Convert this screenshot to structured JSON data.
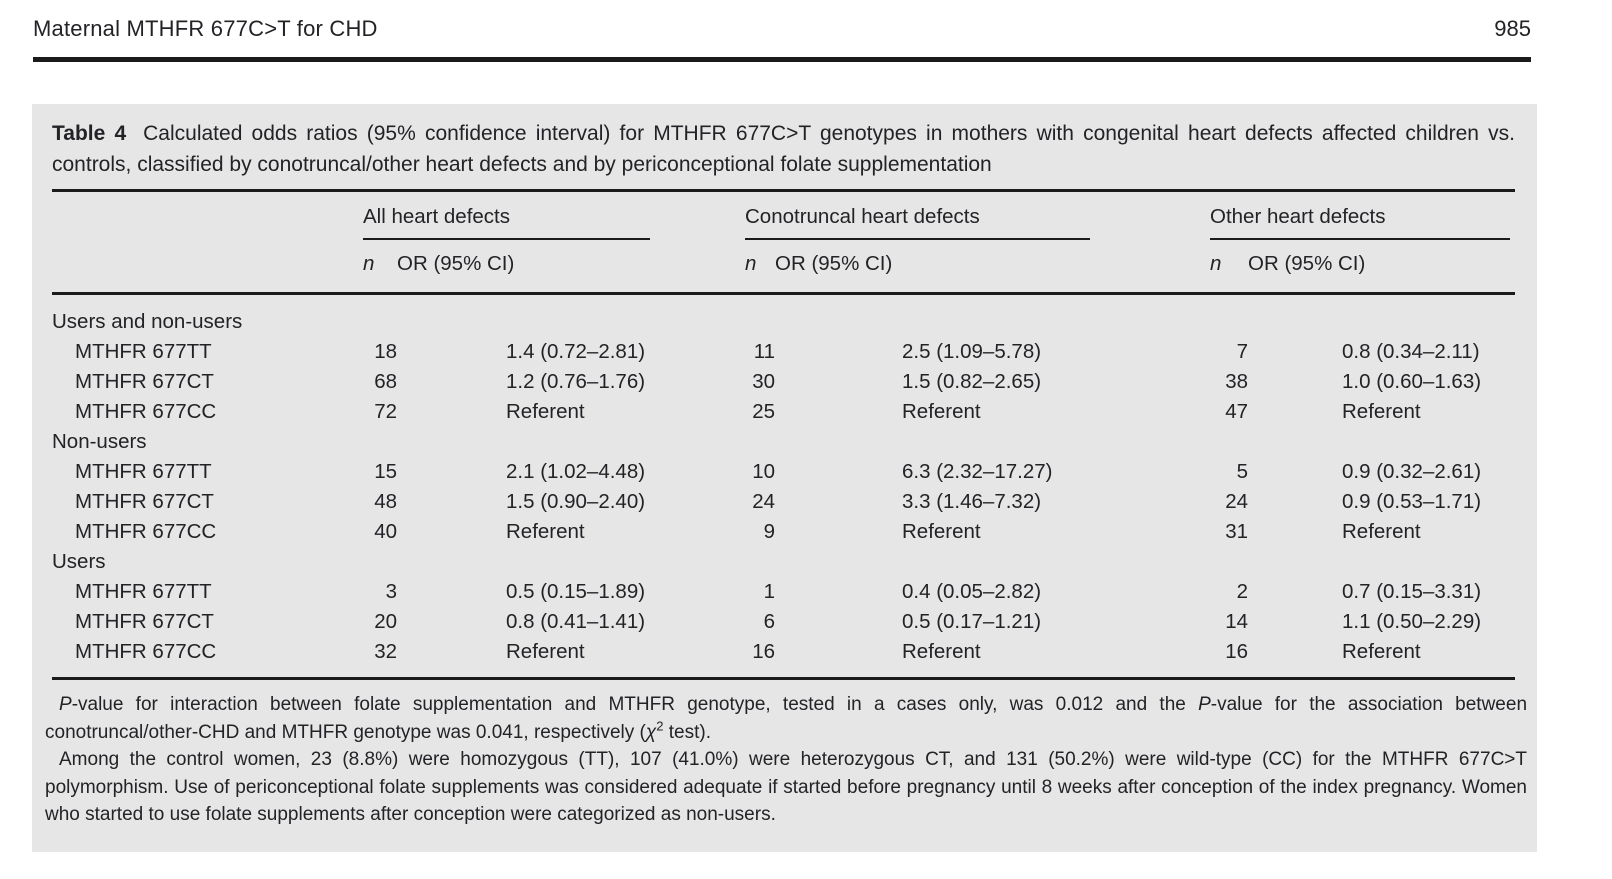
{
  "page": {
    "running_head": "Maternal MTHFR 677C>T for CHD",
    "page_number": "985"
  },
  "table": {
    "label": "Table 4",
    "caption": "Calculated odds ratios (95% confidence interval) for MTHFR 677C>T genotypes in mothers with congenital heart defects affected children vs. controls, classified by conotruncal/other heart defects and by periconceptional folate supplementation",
    "groups": [
      {
        "label": "All heart defects"
      },
      {
        "label": "Conotruncal heart defects"
      },
      {
        "label": "Other heart defects"
      }
    ],
    "subheaders": {
      "n": "n",
      "or": "OR (95% CI)"
    },
    "body": [
      {
        "type": "section",
        "label": "Users and non-users"
      },
      {
        "type": "data",
        "label": "MTHFR 677TT",
        "cells": [
          "18",
          "1.4 (0.72–2.81)",
          "11",
          "2.5 (1.09–5.78)",
          "7",
          "0.8 (0.34–2.11)"
        ]
      },
      {
        "type": "data",
        "label": "MTHFR 677CT",
        "cells": [
          "68",
          "1.2 (0.76–1.76)",
          "30",
          "1.5 (0.82–2.65)",
          "38",
          "1.0 (0.60–1.63)"
        ]
      },
      {
        "type": "data",
        "label": "MTHFR 677CC",
        "cells": [
          "72",
          "Referent",
          "25",
          "Referent",
          "47",
          "Referent"
        ]
      },
      {
        "type": "section",
        "label": "Non-users"
      },
      {
        "type": "data",
        "label": "MTHFR 677TT",
        "cells": [
          "15",
          "2.1 (1.02–4.48)",
          "10",
          "6.3 (2.32–17.27)",
          "5",
          "0.9 (0.32–2.61)"
        ]
      },
      {
        "type": "data",
        "label": "MTHFR 677CT",
        "cells": [
          "48",
          "1.5 (0.90–2.40)",
          "24",
          "3.3 (1.46–7.32)",
          "24",
          "0.9 (0.53–1.71)"
        ]
      },
      {
        "type": "data",
        "label": "MTHFR 677CC",
        "cells": [
          "40",
          "Referent",
          "9",
          "Referent",
          "31",
          "Referent"
        ]
      },
      {
        "type": "section",
        "label": "Users"
      },
      {
        "type": "data",
        "label": "MTHFR 677TT",
        "cells": [
          "3",
          "0.5 (0.15–1.89)",
          "1",
          "0.4 (0.05–2.82)",
          "2",
          "0.7 (0.15–3.31)"
        ]
      },
      {
        "type": "data",
        "label": "MTHFR 677CT",
        "cells": [
          "20",
          "0.8 (0.41–1.41)",
          "6",
          "0.5 (0.17–1.21)",
          "14",
          "1.1 (0.50–2.29)"
        ]
      },
      {
        "type": "data",
        "label": "MTHFR 677CC",
        "cells": [
          "32",
          "Referent",
          "16",
          "Referent",
          "16",
          "Referent"
        ]
      }
    ],
    "footnotes": {
      "p1": {
        "italic1": "P",
        "text1": "-value for interaction between folate supplementation and MTHFR genotype, tested in a cases only, was 0.012 and the ",
        "italic2": "P",
        "text2": "-value for the association between conotruncal/other-CHD and MTHFR genotype was 0.041, respectively (",
        "chi": "χ",
        "sup": "2",
        "text3": " test)."
      },
      "p2": "Among the control women, 23 (8.8%) were homozygous (TT), 107 (41.0%) were heterozygous CT, and 131 (50.2%) were wild-type (CC) for the MTHFR 677C>T polymorphism. Use of periconceptional folate supplements was considered adequate if started before pregnancy until 8 weeks after conception of the index pregnancy. Women who started to use folate supplements after conception were categorized as non-users."
    }
  },
  "colors": {
    "panel_bg": "#e6e6e6",
    "rule": "#1b1b1b",
    "text": "#232327"
  }
}
